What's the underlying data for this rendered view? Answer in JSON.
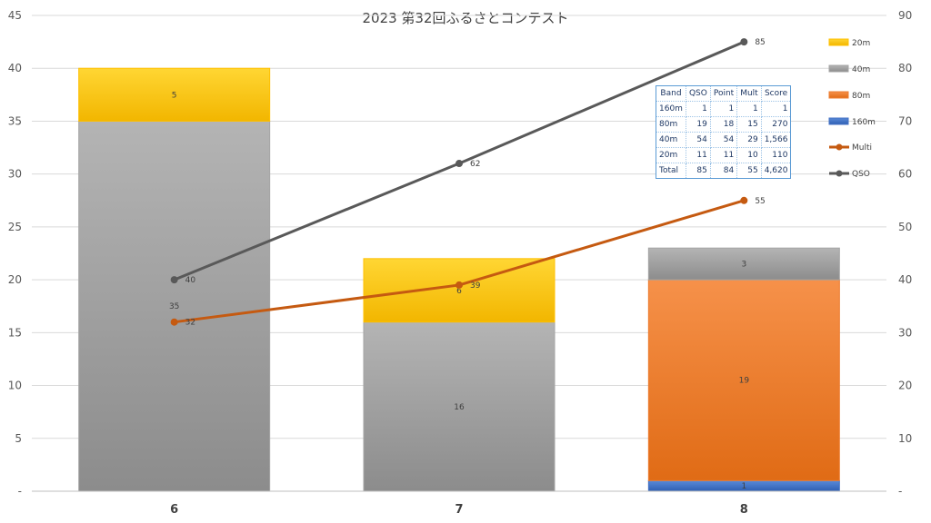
{
  "chart_data": {
    "type": "bar",
    "title": "2023 第32回ふるさとコンテスト",
    "categories": [
      "6",
      "7",
      "8"
    ],
    "ylim": [
      0,
      45
    ],
    "y2lim": [
      0,
      90
    ],
    "yticks": [
      "-",
      "5",
      "10",
      "15",
      "20",
      "25",
      "30",
      "35",
      "40",
      "45"
    ],
    "y2ticks": [
      "-",
      "10",
      "20",
      "30",
      "40",
      "50",
      "60",
      "70",
      "80",
      "90"
    ],
    "grid": true,
    "legend_position": "right",
    "bar_series": [
      {
        "name": "160m",
        "values": [
          0,
          0,
          1
        ],
        "color": "#4472c4"
      },
      {
        "name": "80m",
        "values": [
          0,
          0,
          19
        ],
        "color": "#ed7d31"
      },
      {
        "name": "40m",
        "values": [
          35,
          16,
          3
        ],
        "color": "#a5a5a5"
      },
      {
        "name": "20m",
        "values": [
          5,
          6,
          0
        ],
        "color": "#ffc000"
      }
    ],
    "line_series": [
      {
        "name": "Multi",
        "axis": "secondary",
        "values": [
          32,
          39,
          55
        ],
        "color": "#c55a11"
      },
      {
        "name": "QSO",
        "axis": "secondary",
        "values": [
          40,
          62,
          85
        ],
        "color": "#595959"
      }
    ],
    "legend": [
      {
        "name": "20m",
        "kind": "bar",
        "color": "#ffc000"
      },
      {
        "name": "40m",
        "kind": "bar",
        "color": "#a5a5a5"
      },
      {
        "name": "80m",
        "kind": "bar",
        "color": "#ed7d31"
      },
      {
        "name": "160m",
        "kind": "bar",
        "color": "#4472c4"
      },
      {
        "name": "Multi",
        "kind": "line",
        "color": "#c55a11"
      },
      {
        "name": "QSO",
        "kind": "line",
        "color": "#595959"
      }
    ]
  },
  "score_table": {
    "headers": [
      "Band",
      "QSO",
      "Point",
      "Mult",
      "Score"
    ],
    "rows": [
      [
        "160m",
        "1",
        "1",
        "1",
        "1"
      ],
      [
        "80m",
        "19",
        "18",
        "15",
        "270"
      ],
      [
        "40m",
        "54",
        "54",
        "29",
        "1,566"
      ],
      [
        "20m",
        "11",
        "11",
        "10",
        "110"
      ],
      [
        "Total",
        "85",
        "84",
        "55",
        "4,620"
      ]
    ]
  }
}
